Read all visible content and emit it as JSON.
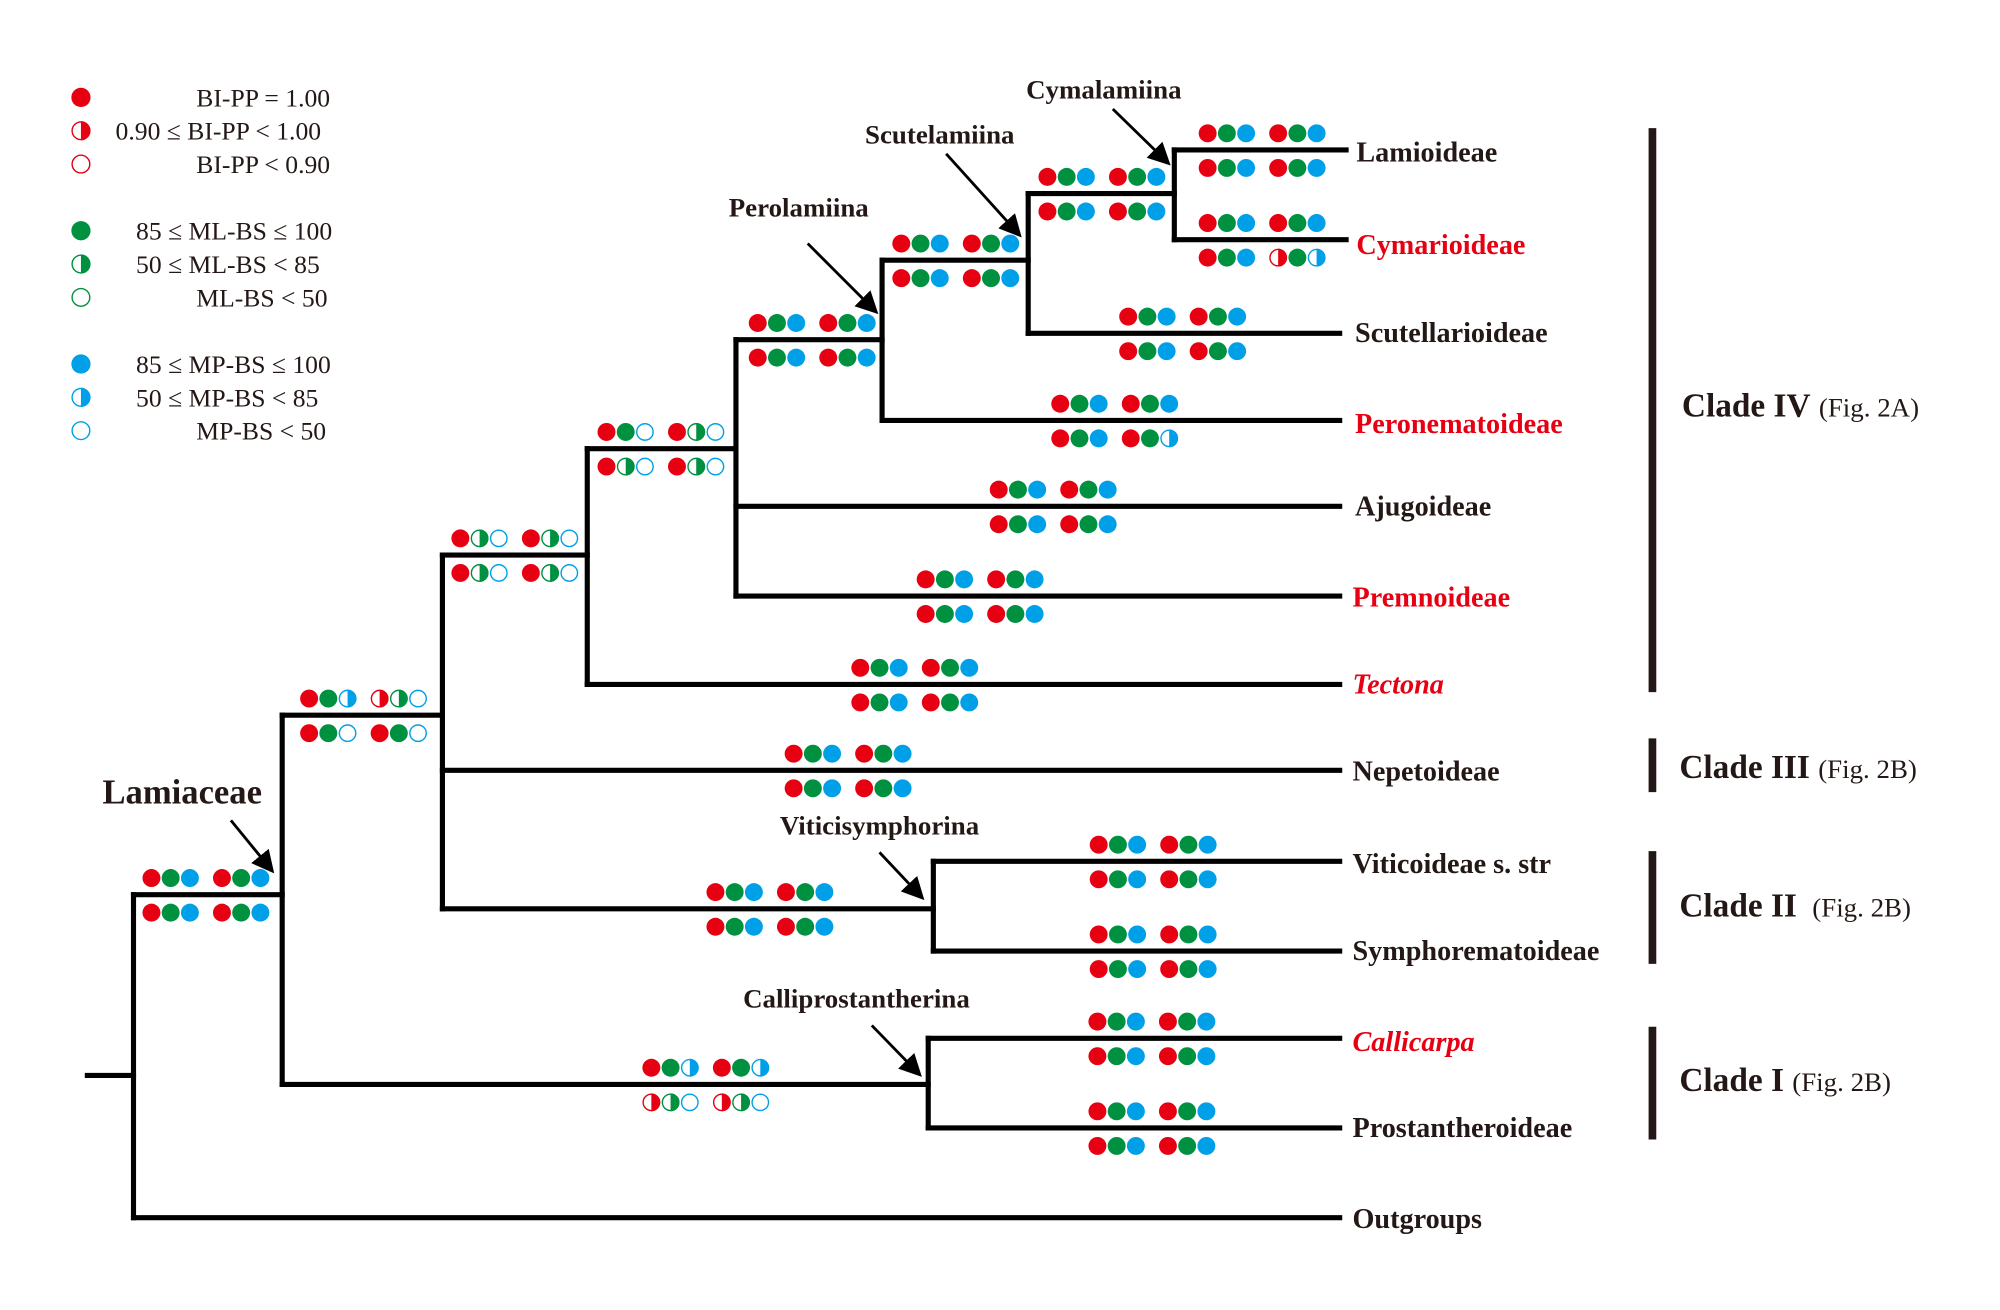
{
  "colors": {
    "bi": "#e60012",
    "ml": "#009140",
    "mp": "#00a0e9",
    "branch": "#000000",
    "highlight_taxon": "#e60012"
  },
  "legend": [
    {
      "group": "bi",
      "state": "full",
      "label": "BI-PP = 1.00"
    },
    {
      "group": "bi",
      "state": "half",
      "label": "0.90 ≤ BI-PP < 1.00"
    },
    {
      "group": "bi",
      "state": "empty",
      "label": "BI-PP < 0.90"
    },
    {
      "group": "ml",
      "state": "full",
      "label": "85 ≤ ML-BS ≤ 100"
    },
    {
      "group": "ml",
      "state": "half",
      "label": "50 ≤ ML-BS < 85"
    },
    {
      "group": "ml",
      "state": "empty",
      "label": "ML-BS < 50"
    },
    {
      "group": "mp",
      "state": "full",
      "label": "85 ≤ MP-BS ≤ 100"
    },
    {
      "group": "mp",
      "state": "half",
      "label": "50 ≤ MP-BS < 85"
    },
    {
      "group": "mp",
      "state": "empty",
      "label": "MP-BS < 50"
    }
  ],
  "taxa": [
    {
      "name": "Lamioideae",
      "highlight": false,
      "italic": false
    },
    {
      "name": "Cymarioideae",
      "highlight": true,
      "italic": false
    },
    {
      "name": "Scutellarioideae",
      "highlight": false,
      "italic": false
    },
    {
      "name": "Peronematoideae",
      "highlight": true,
      "italic": false
    },
    {
      "name": "Ajugoideae",
      "highlight": false,
      "italic": false
    },
    {
      "name": "Premnoideae",
      "highlight": true,
      "italic": false
    },
    {
      "name": "Tectona",
      "highlight": true,
      "italic": true
    },
    {
      "name": "Nepetoideae",
      "highlight": false,
      "italic": false
    },
    {
      "name": "Viticoideae s. str",
      "highlight": false,
      "italic": false
    },
    {
      "name": "Symphorematoideae",
      "highlight": false,
      "italic": false
    },
    {
      "name": "Callicarpa",
      "highlight": true,
      "italic": true
    },
    {
      "name": "Prostantheroideae",
      "highlight": false,
      "italic": false
    },
    {
      "name": "Outgroups",
      "highlight": false,
      "italic": false
    }
  ],
  "node_labels": [
    "Cymalamiina",
    "Scutelamiina",
    "Perolamiina",
    "Lamiaceae",
    "Viticisymphorina",
    "Calliprostantherina"
  ],
  "clades": [
    {
      "name": "Clade IV",
      "fig": "(Fig. 2A)"
    },
    {
      "name": "Clade III",
      "fig": "(Fig. 2B)"
    },
    {
      "name": "Clade II",
      "fig": "(Fig. 2B)"
    },
    {
      "name": "Clade I",
      "fig": "(Fig. 2B)"
    }
  ],
  "support": [
    {
      "node": "Lamiaceae",
      "above": [
        "FFF",
        "FFF"
      ],
      "below": [
        "FFF",
        "FFF"
      ]
    },
    {
      "node": "Lamiaceae-excl-Callicarpa-Prostantheroideae",
      "above": [
        "FFH",
        "HHE"
      ],
      "below": [
        "FFE",
        "FFE"
      ]
    },
    {
      "node": "Clade IV + Nepetoideae",
      "above": [
        "FHE",
        "FHE"
      ],
      "below": [
        "FHE",
        "FHE"
      ]
    },
    {
      "node": "Clade IV",
      "above": [
        "FFE",
        "FHE"
      ],
      "below": [
        "FHE",
        "FHE"
      ]
    },
    {
      "node": "Perolamiina",
      "above": [
        "FFF",
        "FFF"
      ],
      "below": [
        "FFF",
        "FFF"
      ]
    },
    {
      "node": "Scutelamiina",
      "above": [
        "FFF",
        "FFF"
      ],
      "below": [
        "FFF",
        "FFF"
      ]
    },
    {
      "node": "Cymalamiina",
      "above": [
        "FFF",
        "FFF"
      ],
      "below": [
        "FFF",
        "FFF"
      ]
    },
    {
      "node": "Lamioideae",
      "above": [
        "FFF",
        "FFF"
      ],
      "below": [
        "FFF",
        "FFF"
      ]
    },
    {
      "node": "Cymarioideae",
      "above": [
        "FFF",
        "FFF"
      ],
      "below": [
        "FFF",
        "HFH"
      ]
    },
    {
      "node": "Scutellarioideae",
      "above": [
        "FFF",
        "FFF"
      ],
      "below": [
        "FFF",
        "FFF"
      ]
    },
    {
      "node": "Peronematoideae",
      "above": [
        "FFF",
        "FFF"
      ],
      "below": [
        "FFF",
        "FFH"
      ]
    },
    {
      "node": "Ajugoideae",
      "above": [
        "FFF",
        "FFF"
      ],
      "below": [
        "FFF",
        "FFF"
      ]
    },
    {
      "node": "Premnoideae",
      "above": [
        "FFF",
        "FFF"
      ],
      "below": [
        "FFF",
        "FFF"
      ]
    },
    {
      "node": "Tectona",
      "above": [
        "FFF",
        "FFF"
      ],
      "below": [
        "FFF",
        "FFF"
      ]
    },
    {
      "node": "Nepetoideae",
      "above": [
        "FFF",
        "FFF"
      ],
      "below": [
        "FFF",
        "FFF"
      ]
    },
    {
      "node": "Viticisymphorina",
      "above": [
        "FFF",
        "FFF"
      ],
      "below": [
        "FFF",
        "FFF"
      ]
    },
    {
      "node": "Viticoideae s. str",
      "above": [
        "FFF",
        "FFF"
      ],
      "below": [
        "FFF",
        "FFF"
      ]
    },
    {
      "node": "Symphorematoideae",
      "above": [
        "FFF",
        "FFF"
      ],
      "below": [
        "FFF",
        "FFF"
      ]
    },
    {
      "node": "Calliprostantherina",
      "above": [
        "FFH",
        "FFH"
      ],
      "below": [
        "HHE",
        "HHE"
      ]
    },
    {
      "node": "Callicarpa",
      "above": [
        "FFF",
        "FFF"
      ],
      "below": [
        "FFF",
        "FFF"
      ]
    },
    {
      "node": "Prostantheroideae",
      "above": [
        "FFF",
        "FFF"
      ],
      "below": [
        "FFF",
        "FFF"
      ]
    }
  ]
}
